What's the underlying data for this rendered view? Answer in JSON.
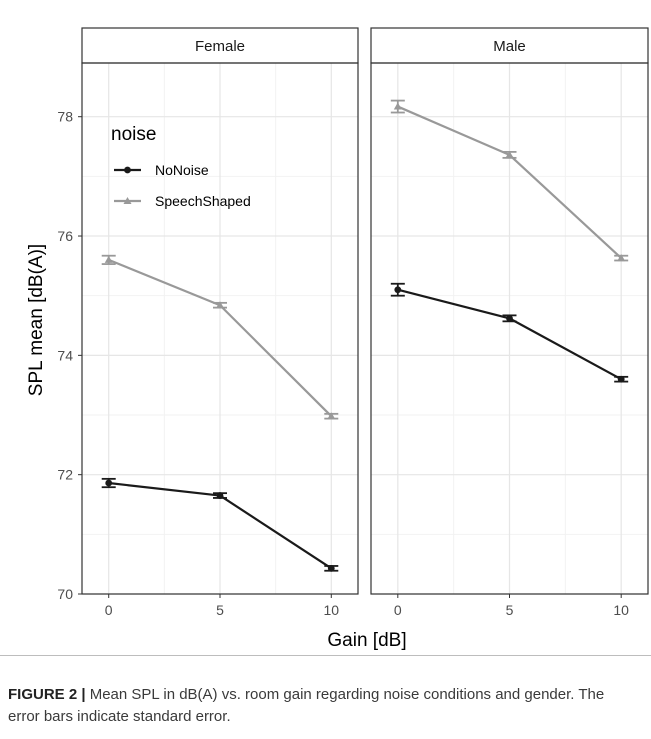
{
  "chart_data": {
    "type": "line",
    "legend": {
      "title": "noise",
      "placement": "top-left inside first panel"
    },
    "x_categories": [
      "0",
      "5",
      "10"
    ],
    "xlabel": "Gain [dB]",
    "ylabel": "SPL mean [dB(A)]",
    "ylim": [
      70,
      78.9
    ],
    "y_ticks": [
      "70",
      "72",
      "74",
      "76",
      "78"
    ],
    "grid": true,
    "panels": [
      {
        "name": "Female",
        "series": [
          {
            "name": "NoNoise",
            "color": "#1a1a1a",
            "marker": "circle",
            "values": [
              71.86,
              71.65,
              70.43
            ],
            "se": [
              0.07,
              0.04,
              0.04
            ]
          },
          {
            "name": "SpeechShaped",
            "color": "#999999",
            "marker": "triangle",
            "values": [
              75.6,
              74.84,
              72.98
            ],
            "se": [
              0.07,
              0.04,
              0.04
            ]
          }
        ]
      },
      {
        "name": "Male",
        "series": [
          {
            "name": "NoNoise",
            "color": "#1a1a1a",
            "marker": "circle",
            "values": [
              75.1,
              74.62,
              73.6
            ],
            "se": [
              0.1,
              0.05,
              0.04
            ]
          },
          {
            "name": "SpeechShaped",
            "color": "#999999",
            "marker": "triangle",
            "values": [
              78.17,
              77.36,
              75.63
            ],
            "se": [
              0.1,
              0.05,
              0.04
            ]
          }
        ]
      }
    ]
  },
  "caption": {
    "label": "FIGURE 2 |",
    "text": " Mean SPL in dB(A) vs. room gain regarding noise conditions and gender. The error bars indicate standard error."
  }
}
